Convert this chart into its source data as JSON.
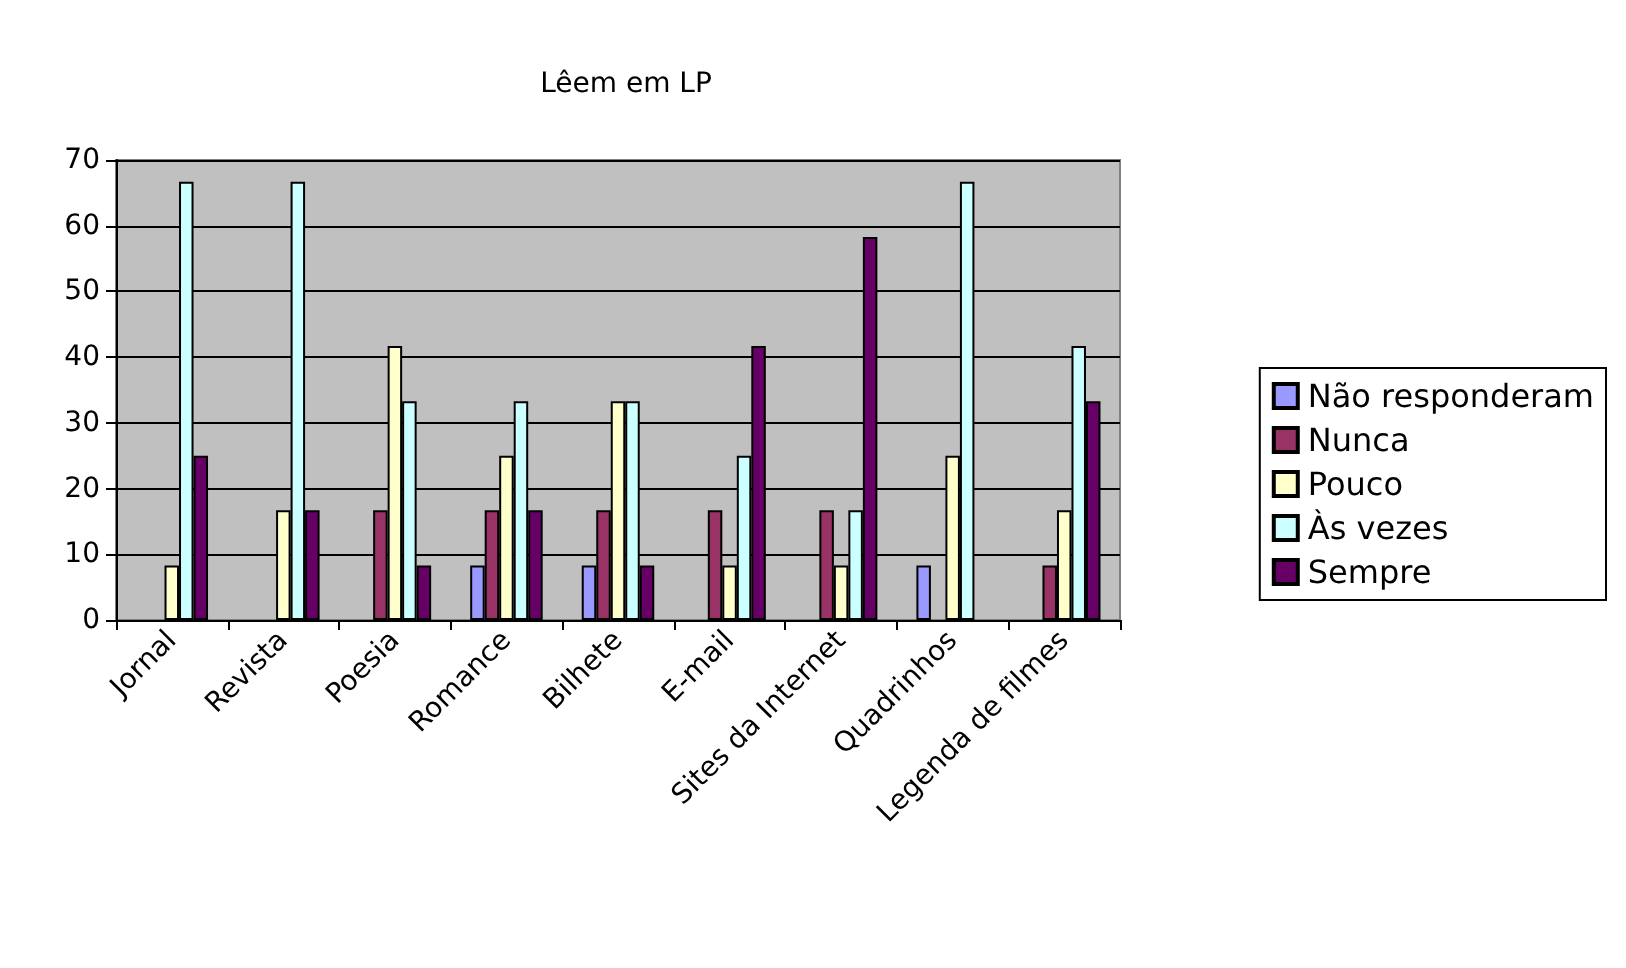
{
  "chart_data": {
    "type": "bar",
    "title": "Lêem em LP",
    "categories": [
      "Jornal",
      "Revista",
      "Poesia",
      "Romance",
      "Bilhete",
      "E-mail",
      "Sites da Internet",
      "Quadrinhos",
      "Legenda de filmes"
    ],
    "series": [
      {
        "name": "Não responderam",
        "color": "#9999ff",
        "values": [
          null,
          null,
          null,
          8.3,
          8.3,
          null,
          null,
          8.3,
          null
        ]
      },
      {
        "name": "Nunca",
        "color": "#993366",
        "values": [
          null,
          null,
          16.7,
          16.7,
          16.7,
          16.7,
          16.7,
          null,
          8.3
        ]
      },
      {
        "name": "Pouco",
        "color": "#ffffcc",
        "values": [
          8.3,
          16.7,
          41.7,
          25,
          33.3,
          8.3,
          8.3,
          25,
          16.7
        ]
      },
      {
        "name": "Às vezes",
        "color": "#ccffff",
        "values": [
          66.7,
          66.7,
          33.3,
          33.3,
          33.3,
          25,
          16.7,
          66.7,
          41.7
        ]
      },
      {
        "name": "Sempre",
        "color": "#660066",
        "values": [
          25,
          16.7,
          8.3,
          16.7,
          8.3,
          41.7,
          58.3,
          null,
          33.3
        ]
      }
    ],
    "ylim": [
      0,
      70
    ],
    "yticks": [
      0,
      10,
      20,
      30,
      40,
      50,
      60,
      70
    ],
    "grid": "y",
    "legend": "right"
  }
}
